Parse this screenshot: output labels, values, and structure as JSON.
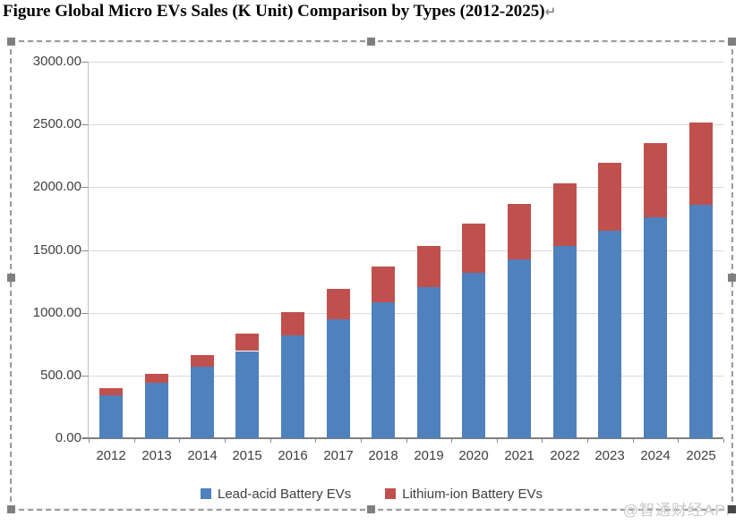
{
  "page": {
    "title": "Figure Global Micro EVs Sales (K Unit) Comparison by Types (2012-2025)",
    "title_return_mark": "↵"
  },
  "watermark": "@智通财经APP",
  "colors": {
    "lead_acid_blue": "#4F81BD",
    "lithium_red": "#C0504D",
    "gridline": "#D9D9D9",
    "axis_label": "#3F3F3F",
    "watermark_gray": "#C9C9C9",
    "selection_handle": "#7F7F7F"
  },
  "chart_data": {
    "type": "bar",
    "stacked": true,
    "title": "Figure Global Micro EVs Sales (K Unit) Comparison by Types (2012-2025)",
    "xlabel": "",
    "ylabel": "",
    "ylim": [
      0,
      3000
    ],
    "ytick_step": 500,
    "ytick_labels": [
      "3000.00",
      "2500.00",
      "2000.00",
      "1500.00",
      "1000.00",
      "500.00",
      "0.00"
    ],
    "grid": true,
    "legend_position": "bottom",
    "categories": [
      "2012",
      "2013",
      "2014",
      "2015",
      "2016",
      "2017",
      "2018",
      "2019",
      "2020",
      "2021",
      "2022",
      "2023",
      "2024",
      "2025"
    ],
    "series": [
      {
        "name": "Lead-acid Battery EVs",
        "color": "#4F81BD",
        "values": [
          340,
          440,
          570,
          695,
          820,
          950,
          1085,
          1205,
          1320,
          1425,
          1535,
          1655,
          1760,
          1860
        ]
      },
      {
        "name": "Lithium-ion Battery EVs",
        "color": "#C0504D",
        "values": [
          60,
          75,
          95,
          140,
          185,
          240,
          280,
          330,
          390,
          445,
          495,
          540,
          595,
          655
        ]
      }
    ],
    "totals": [
      400,
      515,
      665,
      835,
      1005,
      1190,
      1365,
      1535,
      1710,
      1870,
      2030,
      2195,
      2355,
      2515
    ]
  }
}
